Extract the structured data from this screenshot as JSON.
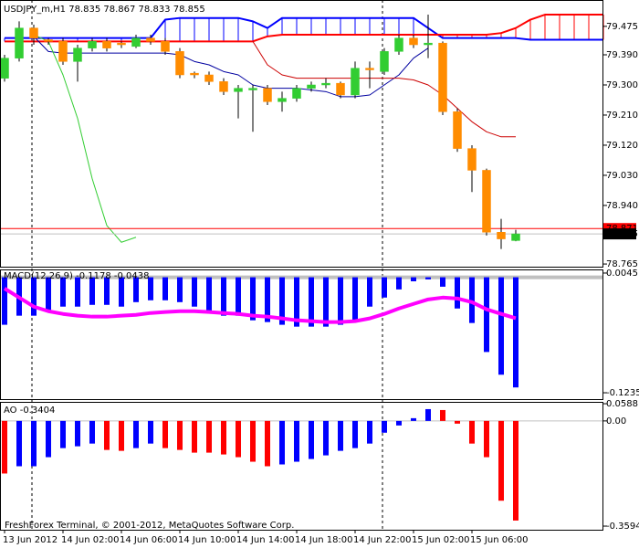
{
  "chart_data": [
    {
      "type": "candlestick",
      "title": "USDJPY_m,H1  78.835 78.867 78.833 78.855",
      "categories": [
        "13 Jun 2012",
        null,
        null,
        null,
        "14 Jun 02:00",
        null,
        null,
        null,
        "14 Jun 06:00",
        null,
        null,
        null,
        "14 Jun 10:00",
        null,
        null,
        null,
        "14 Jun 14:00",
        null,
        null,
        null,
        "14 Jun 18:00",
        null,
        null,
        null,
        "14 Jun 22:00",
        null,
        null,
        null,
        "15 Jun 02:00",
        null,
        null,
        null,
        "15 Jun 06:00",
        null,
        null,
        null,
        null,
        null,
        null,
        null,
        null,
        null
      ],
      "open": [
        79.32,
        79.38,
        79.47,
        79.435,
        79.43,
        79.37,
        79.41,
        79.43,
        79.425,
        79.415,
        79.44,
        79.43,
        79.4,
        79.335,
        79.33,
        79.31,
        79.28,
        79.285,
        79.29,
        79.25,
        79.26,
        79.29,
        79.3,
        79.305,
        79.27,
        79.35,
        79.34,
        79.4,
        79.44,
        79.42,
        79.425,
        79.22,
        79.11,
        79.045,
        78.86,
        78.835,
        null,
        null,
        null,
        null,
        null,
        null
      ],
      "high": [
        79.39,
        79.49,
        79.48,
        79.44,
        79.44,
        79.42,
        79.44,
        79.44,
        79.43,
        79.45,
        79.45,
        79.44,
        79.41,
        79.34,
        79.34,
        79.32,
        79.3,
        79.3,
        79.3,
        79.28,
        79.3,
        79.31,
        79.32,
        79.31,
        79.37,
        79.37,
        79.41,
        79.45,
        79.45,
        79.51,
        79.43,
        79.23,
        79.12,
        79.05,
        78.9,
        78.867,
        null,
        null,
        null,
        null,
        null,
        null
      ],
      "low": [
        79.31,
        79.37,
        79.42,
        79.42,
        79.36,
        79.31,
        79.4,
        79.4,
        79.41,
        79.41,
        79.42,
        79.39,
        79.32,
        79.32,
        79.3,
        79.27,
        79.2,
        79.16,
        79.24,
        79.22,
        79.25,
        79.28,
        79.29,
        79.26,
        79.26,
        79.29,
        79.33,
        79.39,
        79.41,
        79.38,
        79.21,
        79.1,
        78.98,
        78.85,
        78.81,
        78.833,
        null,
        null,
        null,
        null,
        null,
        null
      ],
      "close": [
        79.38,
        79.47,
        79.44,
        79.43,
        79.37,
        79.41,
        79.43,
        79.41,
        79.42,
        79.44,
        79.43,
        79.4,
        79.33,
        79.33,
        79.31,
        79.28,
        79.29,
        79.29,
        79.25,
        79.26,
        79.29,
        79.3,
        79.305,
        79.27,
        79.35,
        79.345,
        79.4,
        79.44,
        79.42,
        79.425,
        79.22,
        79.11,
        79.045,
        78.86,
        78.84,
        78.855,
        null,
        null,
        null,
        null,
        null,
        null
      ],
      "up_color": "#32cd32",
      "down_color": "#ff8c00",
      "wick_color": "#000000",
      "lines": [
        {
          "color": "#0000ff",
          "width": 2,
          "values": [
            79.44,
            79.44,
            79.44,
            79.44,
            79.44,
            79.44,
            79.44,
            79.44,
            79.44,
            79.44,
            79.44,
            79.495,
            79.5,
            79.5,
            79.5,
            79.5,
            79.5,
            79.49,
            79.47,
            79.5,
            79.5,
            79.5,
            79.5,
            79.5,
            79.5,
            79.5,
            79.5,
            79.5,
            79.5,
            79.47,
            79.44,
            79.44,
            79.44,
            79.44,
            79.44,
            79.44,
            79.435,
            79.435,
            79.435,
            79.435,
            79.435,
            79.435
          ]
        },
        {
          "color": "#ff0000",
          "width": 2,
          "values": [
            79.43,
            79.43,
            79.43,
            79.43,
            79.43,
            79.43,
            79.43,
            79.43,
            79.43,
            79.43,
            79.43,
            79.43,
            79.43,
            79.43,
            79.43,
            79.43,
            79.43,
            79.43,
            79.445,
            79.45,
            79.45,
            79.45,
            79.45,
            79.45,
            79.45,
            79.45,
            79.45,
            79.45,
            79.45,
            79.45,
            79.45,
            79.45,
            79.45,
            79.45,
            79.455,
            79.47,
            79.495,
            79.51,
            79.51,
            79.51,
            79.51,
            79.51
          ]
        },
        {
          "color": "#0000a0",
          "width": 1,
          "values": [
            null,
            null,
            79.445,
            79.4,
            79.395,
            79.395,
            79.395,
            79.395,
            79.395,
            79.395,
            79.395,
            79.395,
            79.39,
            79.37,
            79.36,
            79.34,
            79.33,
            79.3,
            79.29,
            79.29,
            79.29,
            79.285,
            79.28,
            79.265,
            79.265,
            79.27,
            79.3,
            79.33,
            79.38,
            79.41,
            null,
            null,
            null,
            null,
            null,
            null,
            null,
            null,
            null,
            null,
            null,
            null
          ]
        },
        {
          "color": "#cc0000",
          "width": 1,
          "values": [
            null,
            null,
            null,
            null,
            null,
            null,
            null,
            null,
            null,
            null,
            null,
            null,
            null,
            null,
            null,
            null,
            null,
            79.43,
            79.36,
            79.33,
            79.32,
            79.32,
            79.32,
            79.32,
            79.32,
            79.32,
            79.32,
            79.32,
            79.315,
            79.3,
            79.27,
            79.23,
            79.19,
            79.16,
            79.145,
            79.145,
            null,
            null,
            null,
            null,
            null,
            null
          ]
        },
        {
          "color": "#32cd32",
          "width": 1,
          "values": [
            null,
            null,
            79.45,
            79.43,
            79.33,
            79.2,
            79.02,
            78.88,
            78.83,
            78.845,
            null,
            null,
            null,
            null,
            null,
            null,
            null,
            null,
            null,
            null,
            null,
            null,
            null,
            null,
            null,
            null,
            null,
            null,
            null,
            null,
            null,
            null,
            null,
            null,
            null,
            null,
            null,
            null,
            null,
            null,
            null,
            null
          ]
        }
      ],
      "cloud": [
        0,
        1
      ],
      "ylim": [
        78.757,
        79.551
      ],
      "yticks": [
        {
          "value": 79.475,
          "label": "79.475"
        },
        {
          "value": 79.39,
          "label": "79.390"
        },
        {
          "value": 79.3,
          "label": "79.300"
        },
        {
          "value": 79.21,
          "label": "79.210"
        },
        {
          "value": 79.12,
          "label": "79.120"
        },
        {
          "value": 79.03,
          "label": "79.030"
        },
        {
          "value": 78.94,
          "label": "78.940"
        },
        78.765
      ],
      "ask_line": 78.871,
      "ask_color": "#ff0000",
      "bid_line": 78.855,
      "bid_color": "#c0c0c0"
    },
    {
      "type": "bar",
      "title": "MACD(12,26,9) -0.1178 -0.0438",
      "values": [
        -0.0508,
        -0.0411,
        -0.0411,
        -0.0363,
        -0.0314,
        -0.0314,
        -0.0295,
        -0.0295,
        -0.0314,
        -0.0266,
        -0.0246,
        -0.0246,
        -0.0266,
        -0.0314,
        -0.0382,
        -0.0411,
        -0.0411,
        -0.046,
        -0.0479,
        -0.0508,
        -0.0528,
        -0.0528,
        -0.0528,
        -0.0508,
        -0.046,
        -0.0314,
        -0.0217,
        -0.013,
        -0.0043,
        -0.0023,
        -0.0101,
        -0.0334,
        -0.0489,
        -0.0799,
        -0.1042,
        -0.1178
      ],
      "color": "#0000ff",
      "lines": [
        {
          "color": "#ff00ff",
          "width": 4,
          "values": [
            -0.012,
            -0.0217,
            -0.0314,
            -0.0363,
            -0.0392,
            -0.0411,
            -0.0421,
            -0.0421,
            -0.0411,
            -0.0402,
            -0.0382,
            -0.0372,
            -0.0363,
            -0.0363,
            -0.0372,
            -0.0382,
            -0.0392,
            -0.0411,
            -0.0421,
            -0.044,
            -0.046,
            -0.0469,
            -0.0479,
            -0.0479,
            -0.0469,
            -0.044,
            -0.0392,
            -0.0334,
            -0.0285,
            -0.0237,
            -0.0217,
            -0.0227,
            -0.0266,
            -0.0343,
            -0.0392,
            -0.0438
          ]
        }
      ],
      "ylim": [
        -0.1303,
        0.0074
      ],
      "yticks": [
        0.0045,
        -0.1235
      ]
    },
    {
      "type": "bar",
      "title": "AO -0.3404",
      "values": [
        -0.1797,
        -0.1549,
        -0.1549,
        -0.1239,
        -0.0929,
        -0.0867,
        -0.0774,
        -0.0991,
        -0.1022,
        -0.0929,
        -0.0774,
        -0.0929,
        -0.0991,
        -0.1084,
        -0.1084,
        -0.1146,
        -0.1239,
        -0.1394,
        -0.1549,
        -0.1487,
        -0.1394,
        -0.1301,
        -0.1177,
        -0.1022,
        -0.0929,
        -0.0774,
        -0.0403,
        -0.0155,
        0.0093,
        0.0403,
        0.0372,
        -0.0093,
        -0.0774,
        -0.1239,
        -0.2726,
        -0.3404
      ],
      "colors": [
        "#ff0000",
        "#0000ff",
        "#0000ff",
        "#0000ff",
        "#0000ff",
        "#0000ff",
        "#0000ff",
        "#ff0000",
        "#ff0000",
        "#0000ff",
        "#0000ff",
        "#ff0000",
        "#ff0000",
        "#ff0000",
        "#ff0000",
        "#ff0000",
        "#ff0000",
        "#ff0000",
        "#ff0000",
        "#0000ff",
        "#0000ff",
        "#0000ff",
        "#0000ff",
        "#0000ff",
        "#0000ff",
        "#0000ff",
        "#0000ff",
        "#0000ff",
        "#0000ff",
        "#0000ff",
        "#ff0000",
        "#ff0000",
        "#ff0000",
        "#ff0000",
        "#ff0000",
        "#ff0000"
      ],
      "ylim": [
        -0.3718,
        0.062
      ],
      "yticks": [
        0.0588,
        {
          "value": 0,
          "label": "0.00"
        },
        -0.3594
      ],
      "zero_color": "#c0c0c0"
    }
  ],
  "footer": "FreshForex Terminal, © 2001-2012, MetaQuotes Software Corp."
}
